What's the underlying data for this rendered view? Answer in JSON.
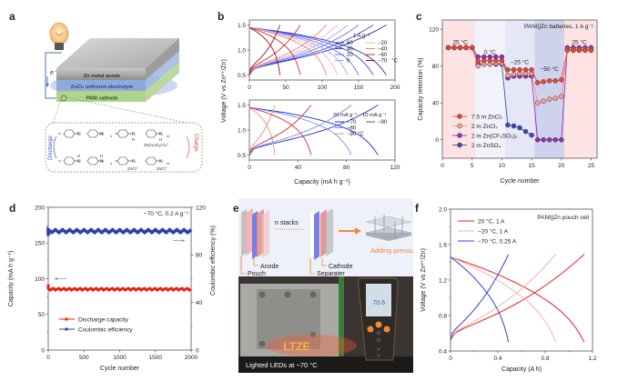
{
  "panel_labels": [
    "a",
    "b",
    "c",
    "d",
    "e",
    "f"
  ],
  "panel_a": {
    "layers": {
      "anode": "Zn metal anode",
      "electrolyte": "ZnCl₂ unfrozen electrolyte",
      "cathode": "PANI cathode"
    },
    "electron_label": "e⁻",
    "discharge_label": "Discharge",
    "charge_label": "Charge",
    "top_chain": {
      "n_sub": "n",
      "m_sub": "m",
      "counterion": "Zn(H₂O)₂Cl₄²⁻"
    },
    "bottom_chain": {
      "n_sub": "n",
      "m_sub": "m",
      "counterion_1": "ZnCl⁺",
      "counterion_2": "ZnCl⁺"
    }
  },
  "panel_e": {
    "anode_label": "Anode",
    "pouch_label": "Pouch",
    "stacks_label": "n stacks",
    "cathode_label": "Cathode",
    "separator_label": "Separater",
    "pressure_label": "Adding pressure",
    "photo_caption": "Lighted LEDs at −70 °C",
    "led_text": "LTZE",
    "meter_reading": "70.6",
    "accent_color": "#f08a3a"
  },
  "chart_data": [
    {
      "id": "b-top",
      "type": "line",
      "title": "",
      "xlabel": "Capacity (mA h g⁻¹)",
      "ylabel": "Voltage (V vs Zn²⁺/Zn)",
      "xlim": [
        0,
        200
      ],
      "ylim": [
        0.4,
        1.6
      ],
      "xticks": [
        0,
        50,
        100,
        150,
        200
      ],
      "yticks": [
        0.5,
        1.0,
        1.5
      ],
      "legend_title": "1 A g⁻¹",
      "legend_suffix": "°C",
      "legend_position": "right-middle",
      "series": [
        {
          "name": "60",
          "color": "#1f2fc8",
          "capacity": 188
        },
        {
          "name": "40",
          "color": "#3c4ee0",
          "capacity": 170
        },
        {
          "name": "20",
          "color": "#6677ee",
          "capacity": 150
        },
        {
          "name": "0",
          "color": "#9aa6f5",
          "capacity": 135
        },
        {
          "name": "−20",
          "color": "#f6b3b3",
          "capacity": 121
        },
        {
          "name": "−40",
          "color": "#ee7d7d",
          "capacity": 106
        },
        {
          "name": "−60",
          "color": "#d42a2a",
          "capacity": 70
        },
        {
          "name": "−70",
          "color": "#9b1515",
          "capacity": 42
        }
      ]
    },
    {
      "id": "b-bottom",
      "type": "line",
      "xlabel": "Capacity (mA h g⁻¹)",
      "ylabel": "Voltage (V vs Zn²⁺/Zn)",
      "xlim": [
        0,
        120
      ],
      "ylim": [
        0.4,
        1.6
      ],
      "xticks": [
        0,
        40,
        80,
        120
      ],
      "yticks": [
        0.5,
        1.0,
        1.5
      ],
      "legend_titles": [
        "20 mA g⁻¹",
        "10 mA g⁻¹"
      ],
      "legend_position": "right-middle",
      "series": [
        {
          "name": "−70",
          "group": "20 mA g⁻¹",
          "color": "#1f2fc8",
          "capacity": 106
        },
        {
          "name": "−80",
          "group": "20 mA g⁻¹",
          "color": "#7f8cf2",
          "capacity": 84
        },
        {
          "name": "−90 °C",
          "group": "20 mA g⁻¹",
          "color": "#f48a8a",
          "capacity": 21
        },
        {
          "name": "−90",
          "group": "10 mA g⁻¹",
          "color": "#d42a2a",
          "capacity": 51
        }
      ]
    },
    {
      "id": "c",
      "type": "scatter",
      "title": "PANI||Zn batteries, 1 A g⁻¹",
      "xlabel": "Cycle number",
      "ylabel": "Capacity retention (%)",
      "xlim": [
        0,
        26
      ],
      "ylim": [
        -20,
        130
      ],
      "xticks": [
        0,
        5,
        10,
        15,
        20,
        25
      ],
      "yticks": [
        0,
        40,
        80,
        120
      ],
      "legend_position": "bottom-left",
      "temperature_regions": [
        {
          "label": "25 °C",
          "from": 0,
          "to": 5.5,
          "color": "#fde3e3"
        },
        {
          "label": "0 °C",
          "from": 5.5,
          "to": 10.5,
          "color": "#f2f2fb"
        },
        {
          "label": "−25 °C",
          "from": 10.5,
          "to": 15.5,
          "color": "#e6e7f6"
        },
        {
          "label": "−50 °C",
          "from": 15.5,
          "to": 20.5,
          "color": "#cfd2ec"
        },
        {
          "label": "25 °C",
          "from": 20.5,
          "to": 26,
          "color": "#fde3e3"
        }
      ],
      "x": [
        1,
        2,
        3,
        4,
        5,
        6,
        7,
        8,
        9,
        10,
        11,
        12,
        13,
        14,
        15,
        16,
        17,
        18,
        19,
        20,
        21,
        22,
        23,
        24,
        25
      ],
      "series": [
        {
          "name": "7.5 m ZnCl₂",
          "color": "#e8392b",
          "fill": "#ef4433",
          "values": [
            100,
            100,
            100,
            100,
            100,
            85,
            86,
            86,
            86,
            86,
            76,
            76,
            76,
            76,
            76,
            62,
            63,
            64,
            64,
            65,
            97,
            97,
            97,
            97,
            97
          ]
        },
        {
          "name": "2 m ZnCl₂",
          "color": "#f08c8c",
          "fill": "#f5a19a",
          "values": [
            100,
            100,
            100,
            100,
            100,
            80,
            82,
            82,
            83,
            83,
            70,
            71,
            72,
            72,
            72,
            40,
            42,
            44,
            45,
            47,
            98,
            98,
            98,
            98,
            98
          ]
        },
        {
          "name": "2 m Zn(CF₃SO₃)₂",
          "color": "#8a1fa6",
          "fill": "#9a2cb8",
          "values": [
            100,
            100,
            100,
            100,
            100,
            90,
            90,
            90,
            90,
            90,
            67,
            69,
            69,
            69,
            69,
            0,
            0,
            0,
            0,
            0,
            100,
            100,
            100,
            100,
            100
          ]
        },
        {
          "name": "2 m ZnSO₄",
          "color": "#2b3fa8",
          "fill": "#3649b8",
          "values": [
            100,
            100,
            100,
            100,
            100,
            82,
            82,
            82,
            82,
            82,
            16,
            15,
            13,
            9,
            5,
            null,
            null,
            null,
            null,
            null,
            null,
            null,
            null,
            null,
            null
          ]
        }
      ]
    },
    {
      "id": "d",
      "type": "line",
      "title": "−70 °C, 0.2 A g⁻¹",
      "xlabel": "Cycle number",
      "ylabel": "Capacity (mA h g⁻¹)",
      "ylabel_right": "Coulombic efficiency (%)",
      "xlim": [
        0,
        2000
      ],
      "ylim": [
        0,
        200
      ],
      "ylim_right": [
        0,
        120
      ],
      "xticks": [
        0,
        500,
        1000,
        1500,
        2000
      ],
      "yticks": [
        0,
        50,
        100,
        150,
        200
      ],
      "yticks_right": [
        0,
        40,
        80,
        120
      ],
      "legend_position": "bottom-left",
      "series": [
        {
          "name": "Discharge capacity",
          "axis": "left",
          "color": "#e8211a",
          "value": 85,
          "initial": 92
        },
        {
          "name": "Coulombic efficiency",
          "axis": "right",
          "color": "#2e3fb0",
          "value": 100
        }
      ]
    },
    {
      "id": "f",
      "type": "line",
      "title": "PANI||Zn pouch cell",
      "xlabel": "Capacity (A h)",
      "ylabel": "Voltage (V vs Zn²⁺/Zn)",
      "xlim": [
        0,
        1.2
      ],
      "ylim": [
        0.4,
        2.0
      ],
      "xticks": [
        0,
        0.4,
        0.8,
        1.2
      ],
      "yticks": [
        0.4,
        0.8,
        1.2,
        1.6,
        2.0
      ],
      "legend_position": "top-left",
      "series": [
        {
          "name": "20 °C, 1 A",
          "color": "#e8211a",
          "capacity": 1.13
        },
        {
          "name": "−20 °C, 1 A",
          "color": "#f6b0b0",
          "capacity": 0.89
        },
        {
          "name": "−70 °C, 0.25 A",
          "color": "#2f3fe0",
          "capacity": 0.49
        }
      ]
    }
  ]
}
